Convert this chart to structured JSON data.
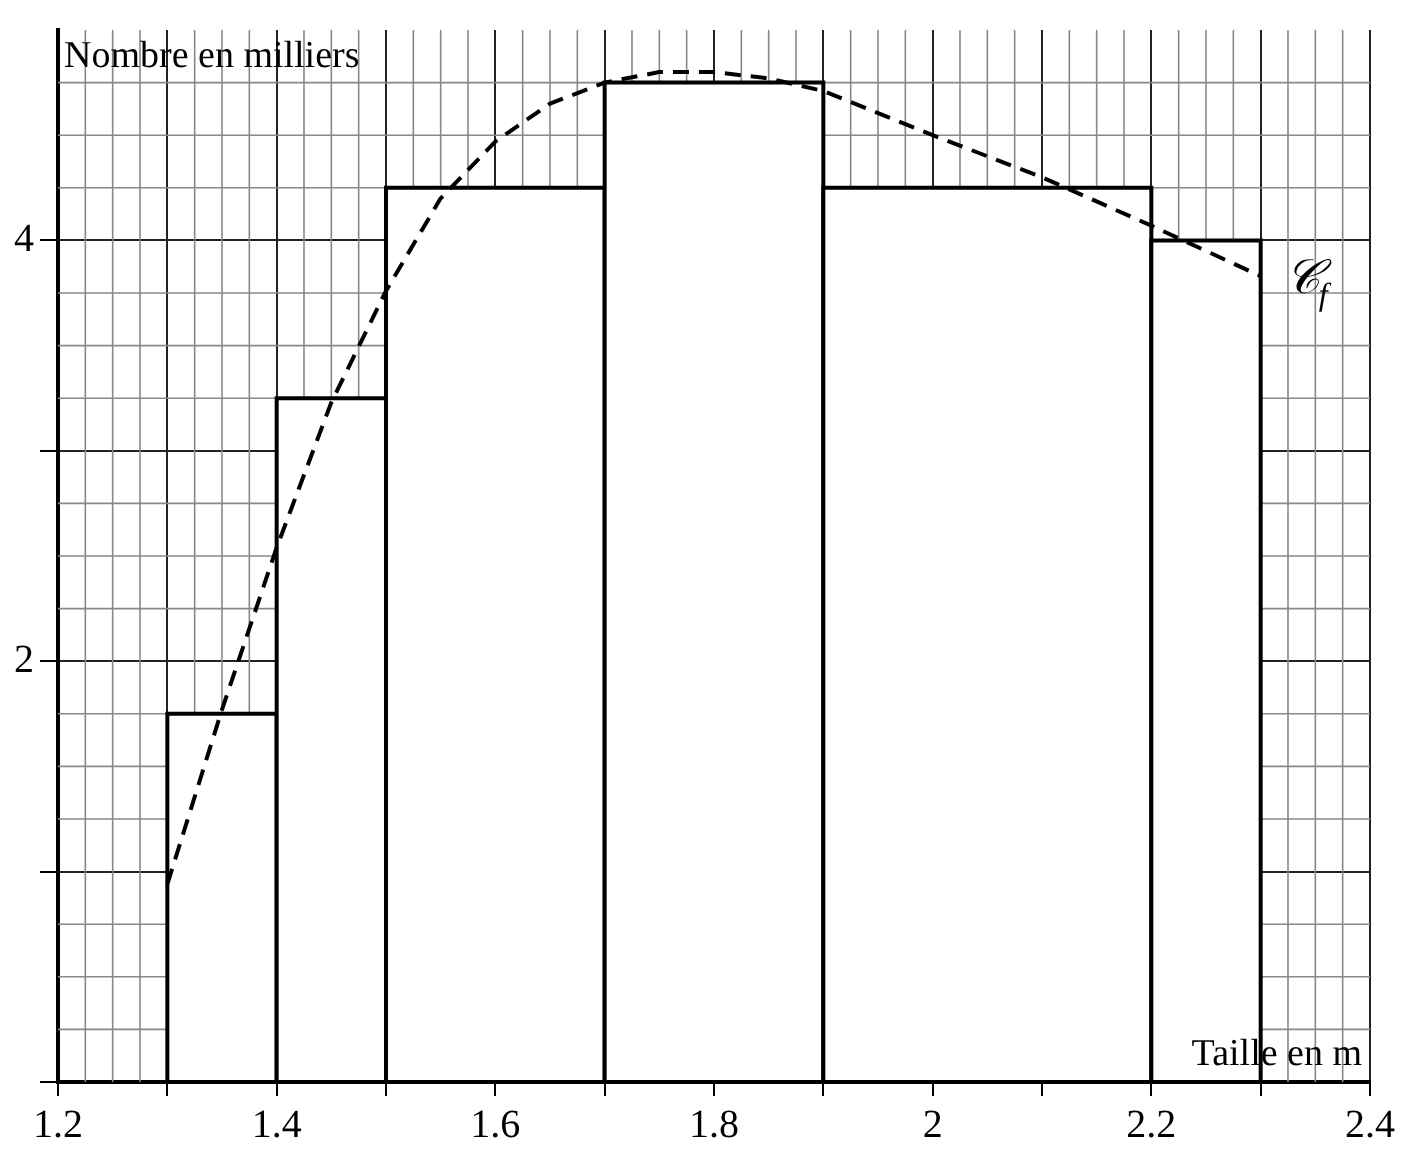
{
  "chart_data": {
    "type": "histogram",
    "xlabel": "Taille en m",
    "ylabel": "Nombre en milliers",
    "bins": [
      1.3,
      1.4,
      1.5,
      1.7,
      1.9,
      2.2,
      2.3
    ],
    "values": [
      1.75,
      3.25,
      4.25,
      4.75,
      4.25,
      4.0
    ],
    "color": "#000000",
    "series": [
      {
        "type": "line",
        "name": "𝒞$_{f}$",
        "color": "#000000",
        "line_style": "dashed",
        "marker": "none",
        "x": [
          1.3,
          1.35,
          1.4,
          1.45,
          1.5,
          1.55,
          1.6,
          1.65,
          1.7,
          1.75,
          1.8,
          1.85,
          1.9,
          2.0,
          2.1,
          2.2,
          2.3
        ],
        "values": [
          0.94,
          1.77,
          2.54,
          3.23,
          3.76,
          4.2,
          4.47,
          4.65,
          4.75,
          4.8,
          4.8,
          4.77,
          4.71,
          4.5,
          4.3,
          4.07,
          3.83
        ]
      }
    ],
    "xlim": [
      1.2,
      2.4
    ],
    "xticks": [
      1.2,
      {
        "value": 1.3,
        "label": null
      },
      1.4,
      {
        "value": 1.5,
        "label": null
      },
      1.6,
      {
        "value": 1.7,
        "label": null
      },
      1.8,
      {
        "value": 1.9,
        "label": null
      },
      2,
      {
        "value": 2.1,
        "label": null
      },
      2.2,
      {
        "value": 2.3,
        "label": null
      },
      2.4
    ],
    "ylim": [
      0,
      5
    ],
    "yticks": [
      {
        "value": 0,
        "label": null
      },
      {
        "value": 1,
        "label": null
      },
      2,
      {
        "value": 3,
        "label": null
      },
      4
    ],
    "grid": true,
    "legend": false
  }
}
